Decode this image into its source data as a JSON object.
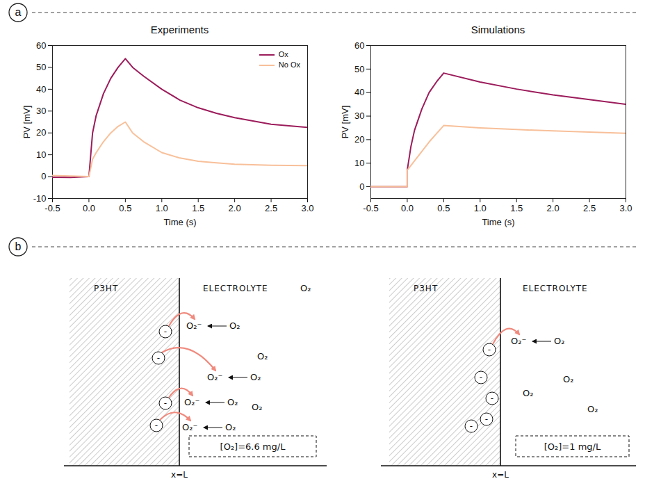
{
  "panels": [
    "a",
    "b"
  ],
  "chart_data": [
    {
      "type": "line",
      "title": "Experiments",
      "x_label": "Time (s)",
      "y_label": "PV [mV]",
      "x": [
        -0.5,
        -0.25,
        0,
        0.05,
        0.1,
        0.2,
        0.3,
        0.4,
        0.5,
        0.6,
        0.75,
        1.0,
        1.25,
        1.5,
        1.75,
        2.0,
        2.5,
        3.0
      ],
      "series": [
        {
          "name": "Ox",
          "color": "#9c1c5b",
          "values": [
            -0.3,
            -0.4,
            0,
            20,
            28,
            38,
            45,
            50,
            54,
            50,
            46,
            40,
            35,
            31.5,
            29,
            27,
            24,
            22.5
          ]
        },
        {
          "name": "No Ox",
          "color": "#f8c09a",
          "values": [
            0.5,
            0.3,
            0,
            8,
            11,
            16,
            20,
            23,
            25,
            20,
            16,
            11,
            8.5,
            7,
            6.3,
            5.7,
            5.2,
            5
          ]
        }
      ],
      "xlim": [
        -0.5,
        3.0
      ],
      "xticks": [
        -0.5,
        {
          "value": 0,
          "label": "0.0"
        },
        0.5,
        {
          "value": 1,
          "label": "1.0"
        },
        1.5,
        {
          "value": 2,
          "label": "2.0"
        },
        2.5,
        {
          "value": 3,
          "label": "3.0"
        }
      ],
      "ylim": [
        -10,
        60
      ],
      "yticks": [
        -10,
        0,
        10,
        20,
        30,
        40,
        50,
        60
      ],
      "legend": "top-right",
      "grid": false
    },
    {
      "type": "line",
      "title": "Simulations",
      "x_label": "Time (s)",
      "y_label": "PV [mV]",
      "x": [
        -0.5,
        0,
        0,
        0.05,
        0.1,
        0.2,
        0.3,
        0.4,
        0.5,
        1.0,
        1.5,
        2.0,
        2.5,
        3.0
      ],
      "series": [
        {
          "color": "#9c1c5b",
          "values": [
            0,
            0,
            7,
            17,
            24,
            33,
            40,
            44.5,
            48.3,
            44.5,
            41.5,
            39,
            37,
            35
          ]
        },
        {
          "color": "#f8c09a",
          "values": [
            0,
            0,
            7,
            9,
            11,
            15,
            19,
            22.5,
            26,
            25,
            24.3,
            23.7,
            23.2,
            22.7
          ]
        }
      ],
      "xlim": [
        -0.5,
        3.0
      ],
      "xticks": [
        -0.5,
        {
          "value": 0,
          "label": "0.0"
        },
        0.5,
        {
          "value": 1,
          "label": "1.0"
        },
        1.5,
        {
          "value": 2,
          "label": "2.0"
        },
        2.5,
        {
          "value": 3,
          "label": "3.0"
        }
      ],
      "ylim": [
        -5,
        60
      ],
      "yticks": [
        0,
        10,
        20,
        30,
        40,
        50,
        60
      ],
      "grid": false
    }
  ],
  "diagrams": [
    {
      "material": "P3HT",
      "medium": "ELECTROLYTE",
      "interface_label": "x=L",
      "concentration": "[O₂]=6.6 mg/L",
      "free_species": [
        "O₂",
        "O₂",
        "O₂"
      ],
      "electrons": [
        {
          "label": "-",
          "transfer": true
        },
        {
          "label": "-",
          "transfer": true
        },
        {
          "label": "-",
          "transfer": true
        },
        {
          "label": "-",
          "transfer": true
        }
      ],
      "reactions": [
        {
          "reactant": "O₂",
          "product": "O₂⁻"
        },
        {
          "reactant": "O₂",
          "product": "O₂⁻"
        },
        {
          "reactant": "O₂",
          "product": "O₂⁻"
        },
        {
          "reactant": "O₂",
          "product": "O₂⁻"
        }
      ]
    },
    {
      "material": "P3HT",
      "medium": "ELECTROLYTE",
      "interface_label": "x=L",
      "concentration": "[O₂]=1 mg/L",
      "free_species": [
        "O₂",
        "O₂",
        "O₂"
      ],
      "electrons": [
        {
          "label": "-",
          "transfer": true
        },
        {
          "label": "-",
          "transfer": false
        },
        {
          "label": "-",
          "transfer": false
        },
        {
          "label": "-",
          "transfer": false
        },
        {
          "label": "-",
          "transfer": false
        }
      ],
      "reactions": [
        {
          "reactant": "O₂",
          "product": "O₂⁻"
        }
      ]
    }
  ]
}
